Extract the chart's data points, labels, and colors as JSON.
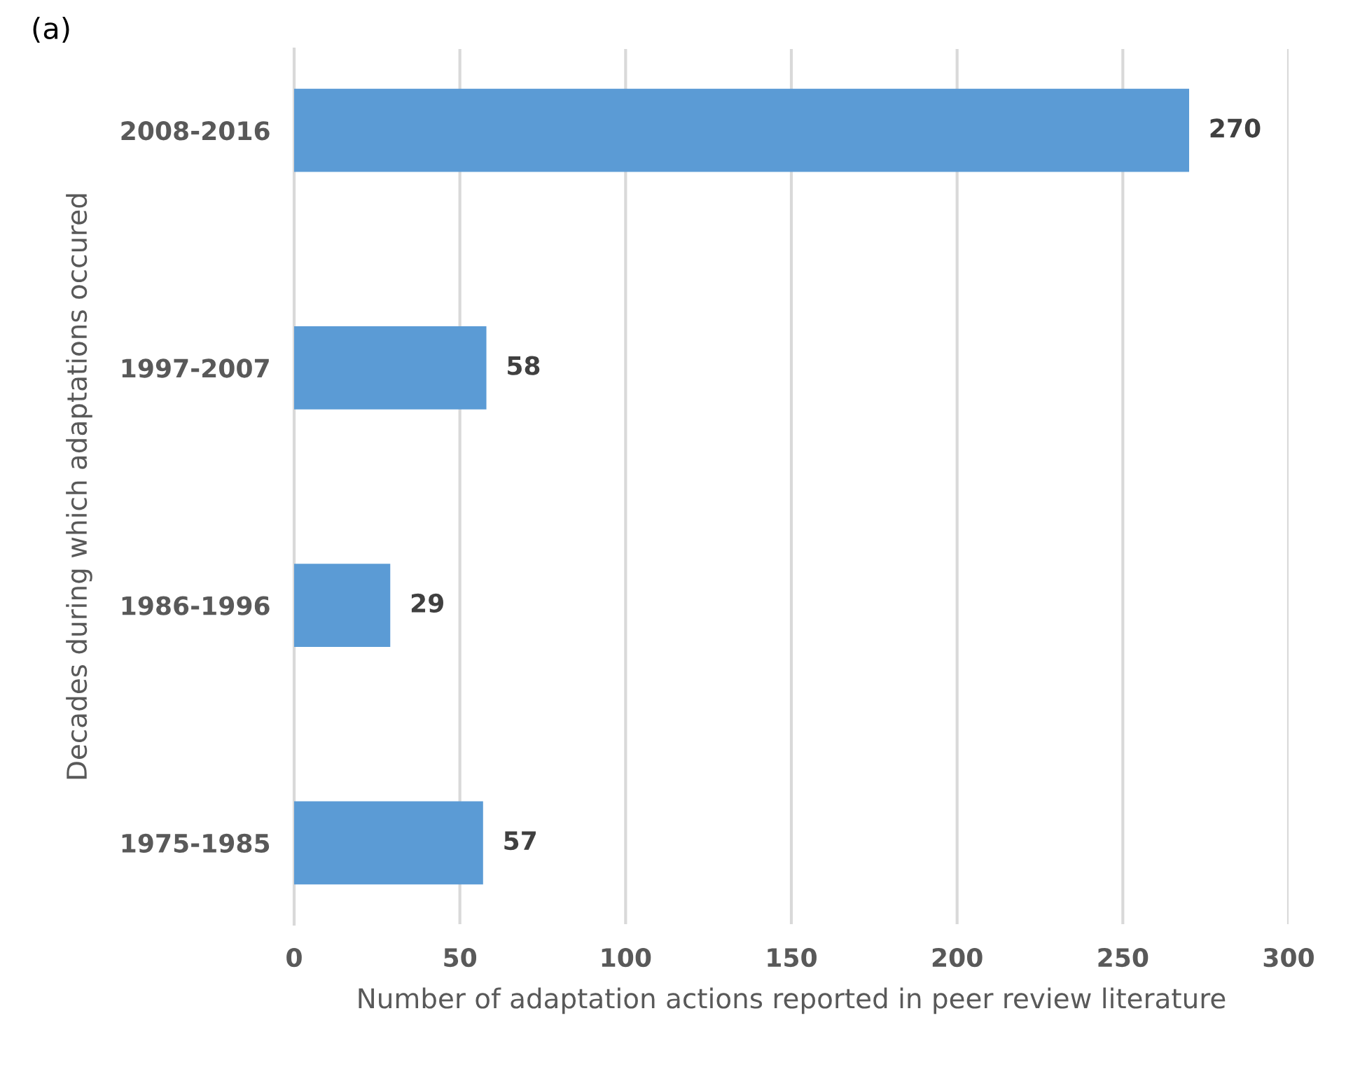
{
  "chart_data": {
    "type": "bar",
    "orientation": "horizontal",
    "title": "(a)",
    "categories": [
      "2008-2016",
      "1997-2007",
      "1986-1996",
      "1975-1985"
    ],
    "values": [
      270,
      58,
      29,
      57
    ],
    "color": "#5b9bd5",
    "xlim": [
      0,
      300
    ],
    "xticks": [
      0,
      50,
      100,
      150,
      200,
      250,
      300
    ],
    "xlabel": "Number of adaptation actions reported in peer review literature",
    "ylabel": "Decades during which adaptations occured",
    "data_labels": true,
    "grid": "x"
  }
}
